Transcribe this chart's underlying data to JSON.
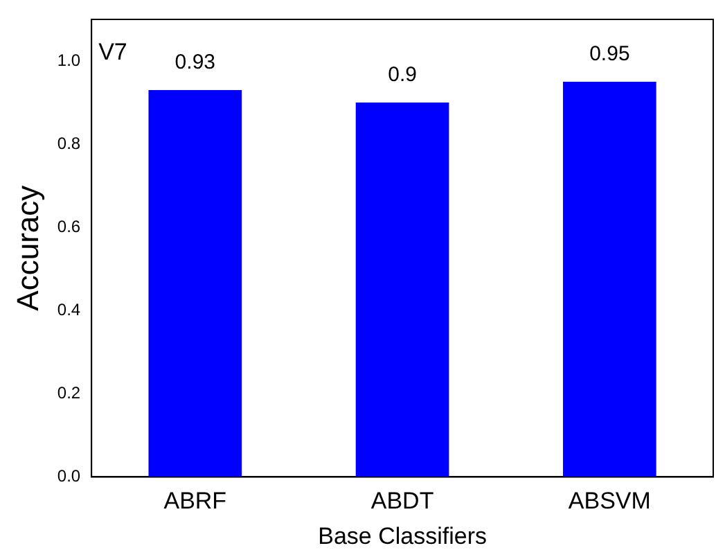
{
  "chart_data": {
    "type": "bar",
    "xlabel": "Base Classifiers",
    "ylabel": "Accuracy",
    "categories": [
      "ABRF",
      "ABDT",
      "ABSVM"
    ],
    "values": [
      0.93,
      0.9,
      0.95
    ],
    "color": "#0000ff",
    "ylim": [
      0,
      1.1
    ],
    "yticks": [
      {
        "value": 0,
        "label": "0.0"
      },
      {
        "value": 0.2,
        "label": "0.2"
      },
      {
        "value": 0.4,
        "label": "0.4"
      },
      {
        "value": 0.6,
        "label": "0.6"
      },
      {
        "value": 0.8,
        "label": "0.8"
      },
      {
        "value": 1,
        "label": "1.0"
      }
    ],
    "data_labels": true,
    "grid": false,
    "legend": false,
    "annotations": [
      "V7"
    ]
  }
}
